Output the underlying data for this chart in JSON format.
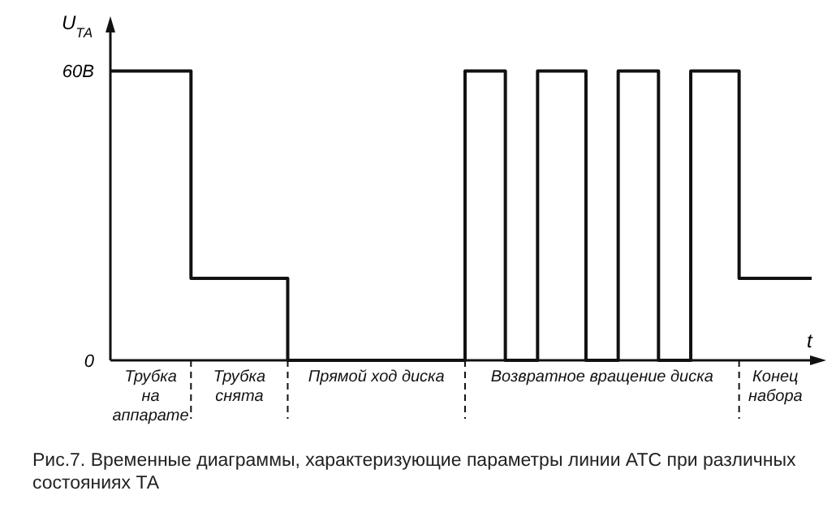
{
  "chart_data": {
    "type": "step",
    "ylabel": "U$_{ТА}$",
    "xlabel": "t",
    "categories": [
      null,
      null,
      null,
      null,
      null,
      null,
      null,
      null,
      null,
      null,
      null,
      null,
      null,
      null,
      null,
      null,
      null,
      null,
      null,
      null,
      null,
      null,
      null,
      null,
      null,
      null,
      null,
      null,
      null,
      null,
      null,
      null,
      null,
      null,
      null,
      null,
      null,
      null,
      null,
      null,
      null,
      null,
      null,
      null,
      null,
      null,
      null,
      null,
      null,
      null,
      null,
      null,
      null,
      null,
      null,
      null,
      null,
      null,
      null,
      null,
      null,
      null,
      null,
      null,
      null,
      null,
      null,
      null,
      null,
      null,
      null,
      null,
      null,
      null,
      null,
      null,
      null,
      null,
      null,
      null,
      null,
      null,
      null,
      null,
      null,
      null,
      null
    ],
    "series": [
      {
        "color": "#111111",
        "values": [
          60,
          60,
          60,
          60,
          60,
          60,
          60,
          60,
          60,
          60,
          17,
          17,
          17,
          17,
          17,
          17,
          17,
          17,
          17,
          17,
          17,
          17,
          0,
          0,
          0,
          0,
          0,
          0,
          0,
          0,
          0,
          0,
          0,
          0,
          0,
          0,
          0,
          0,
          0,
          0,
          0,
          0,
          0,
          0,
          60,
          60,
          60,
          60,
          60,
          0,
          0,
          0,
          0,
          60,
          60,
          60,
          60,
          60,
          60,
          0,
          0,
          0,
          0,
          60,
          60,
          60,
          60,
          60,
          0,
          0,
          0,
          0,
          60,
          60,
          60,
          60,
          60,
          60,
          17,
          17,
          17,
          17,
          17,
          17,
          17,
          17,
          17
        ]
      }
    ],
    "ylim": [
      0,
      70
    ],
    "yticks": [
      0,
      {
        "value": 60,
        "label": "60В"
      }
    ],
    "grid": false,
    "tick_labels": "y",
    "annotations": [
      "Трубка на аппарате",
      "Трубка снята",
      "Прямой ход диска",
      "Возвратное вращение диска",
      "Конец набора",
      "Рис.7. Временные диаграммы, характеризующие параметры линии АТС при различных состояниях ТА"
    ]
  }
}
